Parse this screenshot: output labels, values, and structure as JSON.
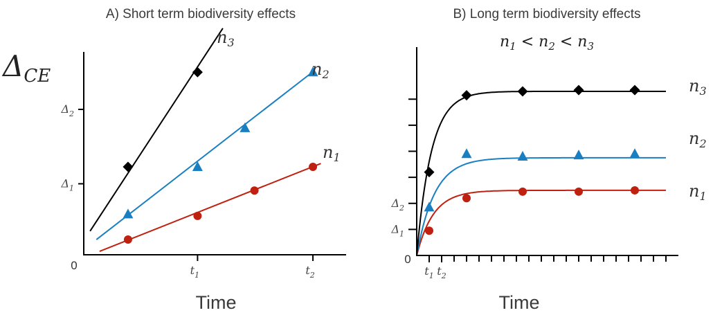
{
  "colors": {
    "n1": "#c0200f",
    "n2": "#1a7fc1",
    "n3": "#000000"
  },
  "chart_data": [
    {
      "panel": "A",
      "type": "line",
      "title": "A) Short term biodiversity effects",
      "xlabel": "Time",
      "ylabel": "ΔCE",
      "ylabel_main": "Δ",
      "ylabel_sub": "CE",
      "origin_label": "0",
      "xlim": [
        0,
        8.3
      ],
      "ylim": [
        0,
        6
      ],
      "x_ticks": [
        {
          "x": 3.6,
          "main": "t",
          "sub": "1"
        },
        {
          "x": 7.25,
          "main": "t",
          "sub": "2"
        }
      ],
      "y_ticks": [
        {
          "y": 2.1,
          "main": "Δ",
          "sub": "1"
        },
        {
          "y": 4.3,
          "main": "Δ",
          "sub": "2"
        }
      ],
      "series": [
        {
          "name": "n1",
          "label_main": "n",
          "label_sub": "1",
          "marker": "circle",
          "line_x": [
            0.5,
            7.5
          ],
          "line_y": [
            0.1,
            2.7
          ],
          "points_x": [
            1.4,
            3.6,
            5.4,
            7.25
          ],
          "points_y": [
            0.45,
            1.15,
            1.9,
            2.6
          ]
        },
        {
          "name": "n2",
          "label_main": "n",
          "label_sub": "2",
          "marker": "triangle",
          "line_x": [
            0.4,
            7.3
          ],
          "line_y": [
            0.45,
            5.45
          ],
          "points_x": [
            1.4,
            3.6,
            5.1,
            7.25
          ],
          "points_y": [
            1.2,
            2.6,
            3.75,
            5.4
          ]
        },
        {
          "name": "n3",
          "label_main": "n",
          "label_sub": "3",
          "marker": "diamond",
          "line_x": [
            0.2,
            4.4
          ],
          "line_y": [
            0.7,
            6.7
          ],
          "points_x": [
            1.4,
            3.6
          ],
          "points_y": [
            2.6,
            5.4
          ]
        }
      ]
    },
    {
      "panel": "B",
      "type": "line",
      "title": "B) Long term biodiversity effects",
      "subtitle": "n1 < n2 < n3",
      "subtitle_parts": [
        "n",
        "1",
        " < ",
        "n",
        "2",
        " < ",
        "n",
        "3"
      ],
      "xlabel": "Time",
      "origin_label": "0",
      "xlim": [
        0,
        20
      ],
      "ylim": [
        0,
        8
      ],
      "x_ticks": [
        {
          "x": 1,
          "main": "t",
          "sub": "1"
        },
        {
          "x": 2,
          "main": "t",
          "sub": "2"
        }
      ],
      "y_ticks": [
        {
          "y": 1,
          "main": "Δ",
          "sub": "1"
        },
        {
          "y": 2,
          "main": "Δ",
          "sub": "2"
        },
        {
          "y": 3,
          "main": "",
          "sub": ""
        },
        {
          "y": 4,
          "main": "",
          "sub": ""
        },
        {
          "y": 5,
          "main": "",
          "sub": ""
        },
        {
          "y": 6,
          "main": "",
          "sub": ""
        }
      ],
      "minor_x_ticks": 20,
      "series": [
        {
          "name": "n1",
          "label_main": "n",
          "label_sub": "1",
          "marker": "circle",
          "asymptote": 2.5,
          "rate": 0.75,
          "points_x": [
            1,
            4,
            8.5,
            13,
            17.5
          ],
          "points_y": [
            0.95,
            2.2,
            2.45,
            2.45,
            2.5
          ]
        },
        {
          "name": "n2",
          "label_main": "n",
          "label_sub": "2",
          "marker": "triangle",
          "asymptote": 3.75,
          "rate": 0.7,
          "points_x": [
            1,
            4,
            8.5,
            13,
            17.5
          ],
          "points_y": [
            1.85,
            3.9,
            3.8,
            3.85,
            3.9
          ]
        },
        {
          "name": "n3",
          "label_main": "n",
          "label_sub": "3",
          "marker": "diamond",
          "asymptote": 6.3,
          "rate": 0.85,
          "points_x": [
            1,
            4,
            8.5,
            13,
            17.5
          ],
          "points_y": [
            3.2,
            6.15,
            6.3,
            6.35,
            6.35
          ]
        }
      ]
    }
  ]
}
